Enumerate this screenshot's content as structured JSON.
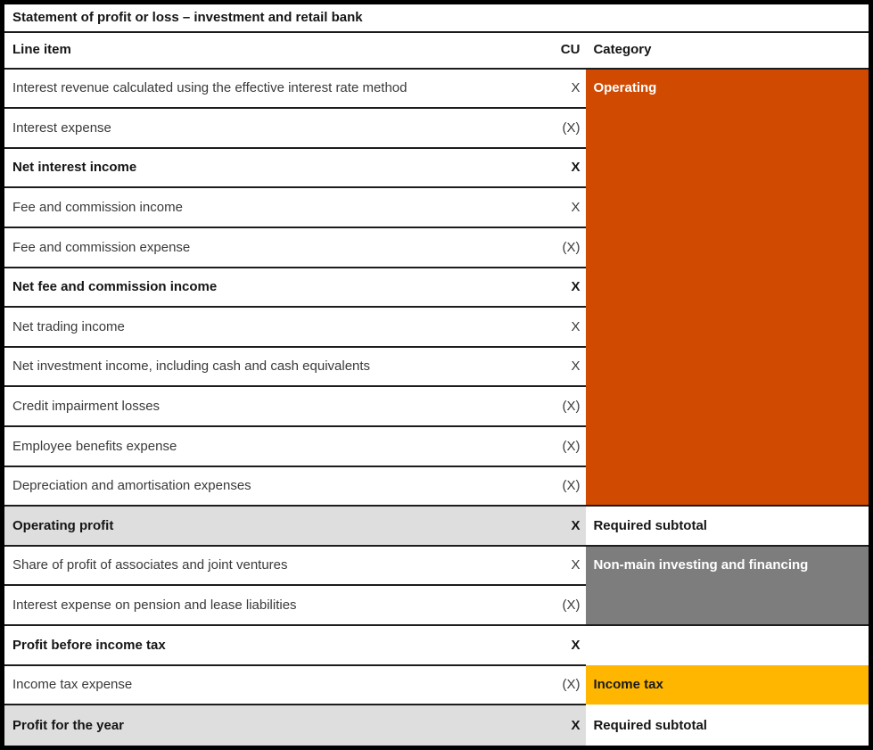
{
  "title": "Statement of profit or loss – investment and retail bank",
  "columns": {
    "line_item": "Line item",
    "cu": "CU",
    "category": "Category"
  },
  "colors": {
    "operating_orange": "#D04A02",
    "income_tax_yellow": "#FFB600",
    "nonmain_gray": "#7D7D7D",
    "subtotal_row_gray": "#DEDEDE",
    "grid_line": "#1c1c1c"
  },
  "rows": [
    {
      "label": "Interest revenue calculated using the effective interest rate method",
      "cu": "X",
      "bold": false,
      "shaded": false,
      "category": {
        "text": "Operating",
        "type": "operating",
        "rowspan": 11
      }
    },
    {
      "label": "Interest expense",
      "cu": "(X)",
      "bold": false,
      "shaded": false
    },
    {
      "label": "Net interest income",
      "cu": "X",
      "bold": true,
      "shaded": false
    },
    {
      "label": "Fee and commission income",
      "cu": "X",
      "bold": false,
      "shaded": false
    },
    {
      "label": "Fee and commission expense",
      "cu": "(X)",
      "bold": false,
      "shaded": false
    },
    {
      "label": "Net fee and commission income",
      "cu": "X",
      "bold": true,
      "shaded": false
    },
    {
      "label": "Net trading income",
      "cu": "X",
      "bold": false,
      "shaded": false
    },
    {
      "label": "Net investment income, including cash and cash equivalents",
      "cu": "X",
      "bold": false,
      "shaded": false
    },
    {
      "label": "Credit impairment losses",
      "cu": "(X)",
      "bold": false,
      "shaded": false
    },
    {
      "label": "Employee benefits expense",
      "cu": "(X)",
      "bold": false,
      "shaded": false
    },
    {
      "label": "Depreciation and amortisation expenses",
      "cu": "(X)",
      "bold": false,
      "shaded": false
    },
    {
      "label": "Operating profit",
      "cu": "X",
      "bold": true,
      "shaded": true,
      "category": {
        "text": "Required subtotal",
        "type": "subtotal",
        "rowspan": 1
      }
    },
    {
      "label": "Share of profit of associates and joint ventures",
      "cu": "X",
      "bold": false,
      "shaded": false,
      "category": {
        "text": "Non-main investing and financing",
        "type": "nonmain",
        "rowspan": 2
      }
    },
    {
      "label": "Interest expense on pension and lease liabilities",
      "cu": "(X)",
      "bold": false,
      "shaded": false
    },
    {
      "label": "Profit before income tax",
      "cu": "X",
      "bold": true,
      "shaded": false,
      "category": {
        "text": "",
        "type": "empty",
        "rowspan": 1
      }
    },
    {
      "label": "Income tax expense",
      "cu": "(X)",
      "bold": false,
      "shaded": false,
      "category": {
        "text": "Income tax",
        "type": "incometax",
        "rowspan": 1
      }
    },
    {
      "label": "Profit for the year",
      "cu": "X",
      "bold": true,
      "shaded": true,
      "category": {
        "text": "Required subtotal",
        "type": "subtotal",
        "rowspan": 1
      }
    }
  ]
}
